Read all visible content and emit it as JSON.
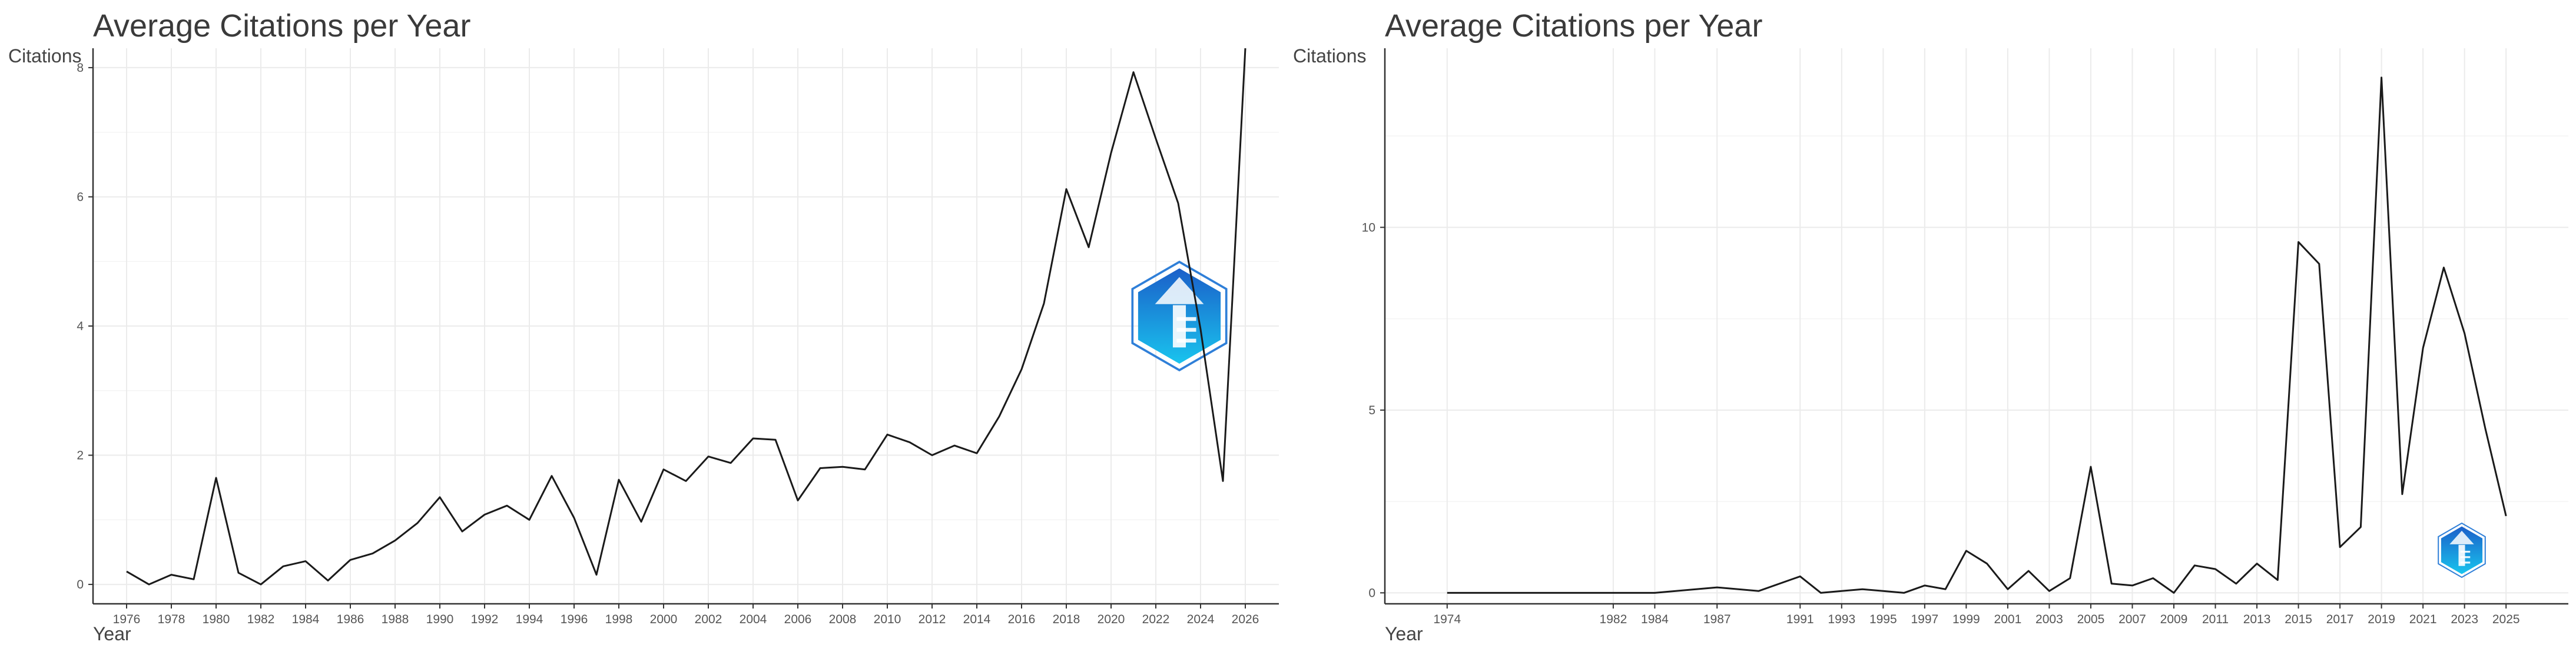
{
  "chart_data": [
    {
      "type": "line",
      "title": "Average Citations per Year",
      "xlabel": "Year",
      "ylabel": "Citations",
      "xlim": [
        1974.5,
        2027.5
      ],
      "ylim": [
        -0.3,
        8.3
      ],
      "x_ticks": [
        1976,
        1978,
        1980,
        1982,
        1984,
        1986,
        1988,
        1990,
        1992,
        1994,
        1996,
        1998,
        2000,
        2002,
        2004,
        2006,
        2008,
        2010,
        2012,
        2014,
        2016,
        2018,
        2020,
        2022,
        2024,
        2026
      ],
      "y_ticks": [
        0,
        2,
        4,
        6,
        8
      ],
      "grid": true,
      "watermark": "bibliometrix-logo",
      "series": [
        {
          "x": [
            1976,
            1977,
            1978,
            1979,
            1980,
            1981,
            1982,
            1983,
            1984,
            1985,
            1986,
            1987,
            1988,
            1989,
            1990,
            1991,
            1992,
            1993,
            1994,
            1995,
            1996,
            1997,
            1998,
            1999,
            2000,
            2001,
            2002,
            2003,
            2004,
            2005,
            2006,
            2007,
            2008,
            2009,
            2010,
            2011,
            2012,
            2013,
            2014,
            2015,
            2016,
            2017,
            2018,
            2019,
            2020,
            2021,
            2022,
            2023,
            2024,
            2025,
            2026
          ],
          "values": [
            0.2,
            0.0,
            0.15,
            0.08,
            1.65,
            0.18,
            0.0,
            0.28,
            0.36,
            0.06,
            0.38,
            0.48,
            0.68,
            0.95,
            1.35,
            0.82,
            1.08,
            1.22,
            1.0,
            1.68,
            1.03,
            0.15,
            1.62,
            0.97,
            1.78,
            1.6,
            1.98,
            1.88,
            2.26,
            2.24,
            1.3,
            1.8,
            1.82,
            1.78,
            2.32,
            2.2,
            2.0,
            2.15,
            2.03,
            2.6,
            3.33,
            4.35,
            6.12,
            5.22,
            6.68,
            7.93,
            6.9,
            5.9,
            3.95,
            1.6,
            8.3
          ]
        }
      ]
    },
    {
      "type": "line",
      "title": "Average Citations per Year",
      "xlabel": "Year",
      "ylabel": "Citations",
      "xlim": [
        1971,
        2028
      ],
      "ylim": [
        -0.3,
        14.9
      ],
      "x_ticks": [
        1974,
        1982,
        1984,
        1987,
        1991,
        1993,
        1995,
        1997,
        1999,
        2001,
        2003,
        2005,
        2007,
        2009,
        2011,
        2013,
        2015,
        2017,
        2019,
        2021,
        2023,
        2025
      ],
      "y_ticks": [
        0,
        5,
        10
      ],
      "grid": true,
      "watermark": "bibliometrix-logo",
      "series": [
        {
          "x": [
            1974,
            1982,
            1984,
            1987,
            1989,
            1991,
            1992,
            1993,
            1994,
            1995,
            1996,
            1997,
            1998,
            1999,
            2000,
            2001,
            2002,
            2003,
            2004,
            2005,
            2006,
            2007,
            2008,
            2009,
            2010,
            2011,
            2012,
            2013,
            2014,
            2015,
            2016,
            2017,
            2018,
            2019,
            2020,
            2021,
            2022,
            2023,
            2024,
            2025
          ],
          "values": [
            0.0,
            0.0,
            0.0,
            0.15,
            0.05,
            0.45,
            0.0,
            0.05,
            0.1,
            0.05,
            0.0,
            0.2,
            0.1,
            1.15,
            0.8,
            0.1,
            0.6,
            0.05,
            0.4,
            3.45,
            0.25,
            0.2,
            0.4,
            0.0,
            0.75,
            0.65,
            0.25,
            0.8,
            0.35,
            9.6,
            9.0,
            1.25,
            1.8,
            14.1,
            2.7,
            6.7,
            8.9,
            7.1,
            4.5,
            2.1
          ]
        }
      ]
    }
  ]
}
